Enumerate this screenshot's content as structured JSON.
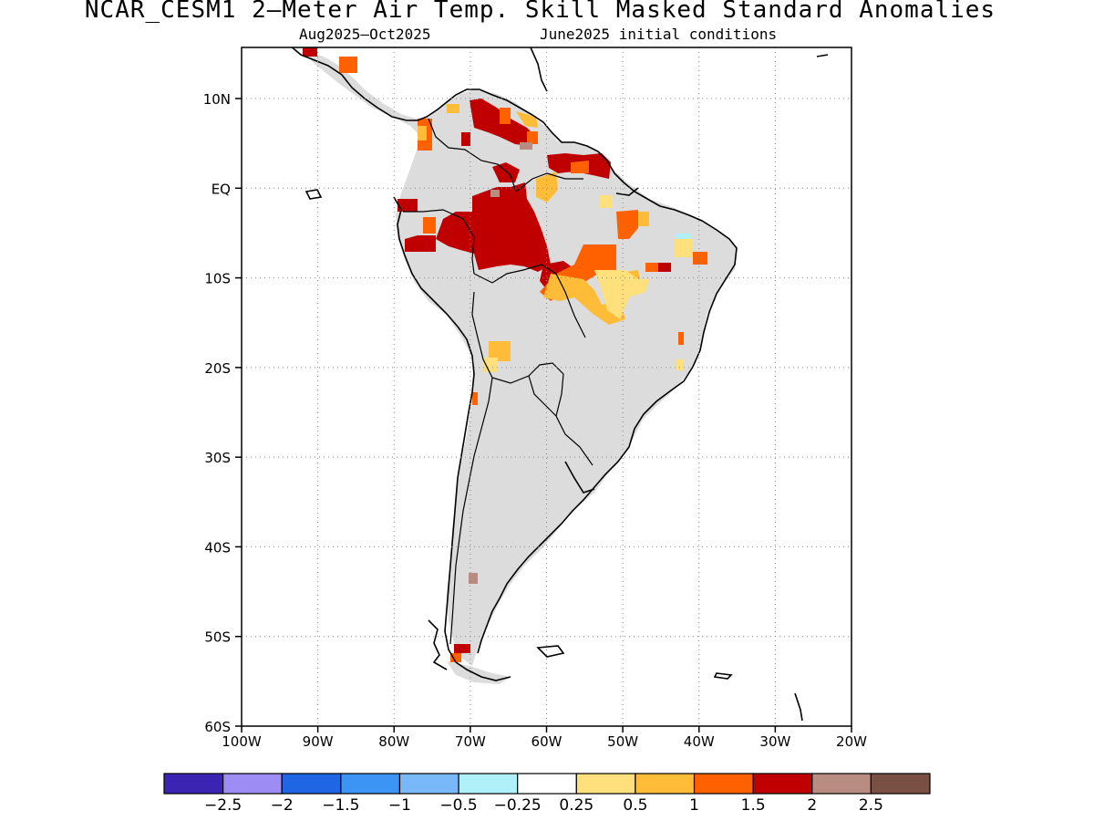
{
  "header": {
    "title": "NCAR_CESM1 2—Meter Air Temp. Skill Masked Standard Anomalies",
    "subtitle_period": "Aug2025—Oct2025",
    "subtitle_ic": "June2025 initial conditions"
  },
  "map": {
    "lat_labels": [
      "10N",
      "EQ",
      "10S",
      "20S",
      "30S",
      "40S",
      "50S",
      "60S"
    ],
    "lon_labels": [
      "100W",
      "90W",
      "80W",
      "70W",
      "60W",
      "50W",
      "40W",
      "30W",
      "20W"
    ],
    "lat_values": [
      10,
      0,
      -10,
      -20,
      -30,
      -40,
      -50,
      -60
    ],
    "lon_values": [
      -100,
      -90,
      -80,
      -70,
      -60,
      -50,
      -40,
      -30,
      -20
    ],
    "lat_range": [
      -60,
      15.7
    ],
    "lon_range": [
      -100,
      -20
    ],
    "grid": "dotted",
    "land_fill": "#dcdcdc",
    "ocean_fill": "#ffffff"
  },
  "colorbar": {
    "colors": [
      "#3b24b4",
      "#9c8cf4",
      "#1f66e4",
      "#3c94f4",
      "#78b8f8",
      "#b0f0f8",
      "#ffffff",
      "#ffe07c",
      "#ffbc38",
      "#ff6000",
      "#c00000",
      "#b88c80",
      "#7a5044"
    ],
    "tick_labels": [
      "−2.5",
      "−2",
      "−1.5",
      "−1",
      "−0.5",
      "−0.25",
      "0.25",
      "0.5",
      "1",
      "1.5",
      "2",
      "2.5"
    ]
  },
  "anomaly_patches": [
    {
      "level": "2",
      "color": "#c00000"
    },
    {
      "level": "1.5",
      "color": "#ff6000"
    },
    {
      "level": "1",
      "color": "#ffbc38"
    },
    {
      "level": "0.5",
      "color": "#ffe07c"
    },
    {
      "level": "2.5",
      "color": "#b88c80"
    }
  ]
}
